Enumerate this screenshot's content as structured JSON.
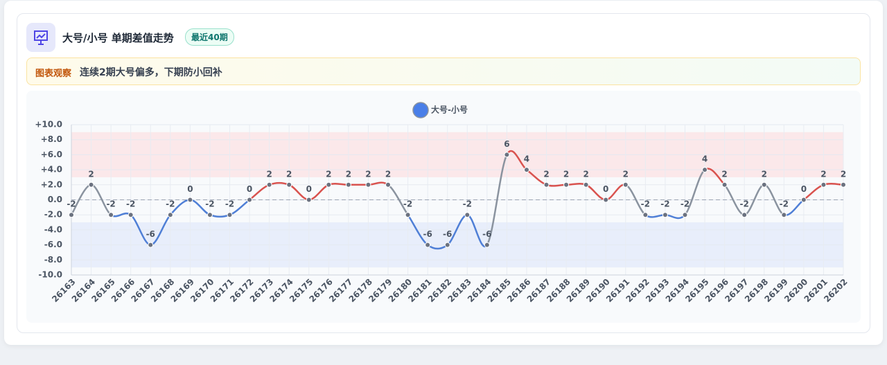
{
  "header": {
    "title": "大号/小号 单期差值走势",
    "badge": "最近40期"
  },
  "observation": {
    "label": "图表观察",
    "text": "连续2期大号偏多，下期防小回补"
  },
  "chart_data": {
    "type": "line",
    "categories": [
      "26163",
      "26164",
      "26165",
      "26166",
      "26167",
      "26168",
      "26169",
      "26170",
      "26171",
      "26172",
      "26173",
      "26174",
      "26175",
      "26176",
      "26177",
      "26178",
      "26179",
      "26180",
      "26181",
      "26182",
      "26183",
      "26184",
      "26185",
      "26186",
      "26187",
      "26188",
      "26189",
      "26190",
      "26191",
      "26192",
      "26193",
      "26194",
      "26195",
      "26196",
      "26197",
      "26198",
      "26199",
      "26200",
      "26201",
      "26202"
    ],
    "series": [
      {
        "name": "大号-小号",
        "color": "#4a7fe8",
        "values": [
          -2,
          2,
          -2,
          -2,
          -6,
          -2,
          0,
          -2,
          -2,
          0,
          2,
          2,
          0,
          2,
          2,
          2,
          2,
          -2,
          -6,
          -6,
          -2,
          -6,
          6,
          4,
          2,
          2,
          2,
          0,
          2,
          -2,
          -2,
          -2,
          4,
          2,
          -2,
          2,
          -2,
          0,
          2,
          2
        ]
      }
    ],
    "positive_color": "#d9534f",
    "negative_color": "#4f7fd6",
    "cross_color": "#8a939f",
    "bands": [
      {
        "from": 3,
        "to": 9,
        "color": "#fbe3e5"
      },
      {
        "from": -3,
        "to": -9,
        "color": "#e3ebfa"
      }
    ],
    "baseline": 0,
    "ylim": [
      -10,
      10
    ],
    "yticks": [
      {
        "value": 10,
        "label": "+10.0"
      },
      {
        "value": 8,
        "label": "+8.0"
      },
      {
        "value": 6,
        "label": "+6.0"
      },
      {
        "value": 4,
        "label": "+4.0"
      },
      {
        "value": 2,
        "label": "+2.0"
      },
      {
        "value": 0,
        "label": "0.0"
      },
      {
        "value": -2,
        "label": "-2.0"
      },
      {
        "value": -4,
        "label": "-4.0"
      },
      {
        "value": -6,
        "label": "-6.0"
      },
      {
        "value": -8,
        "label": "-8.0"
      },
      {
        "value": -10,
        "label": "-10.0"
      }
    ],
    "grid": true
  }
}
